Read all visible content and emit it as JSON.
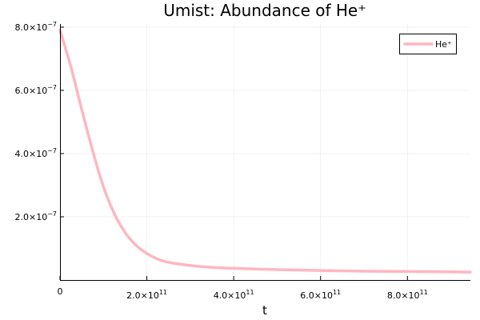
{
  "chart_data": {
    "type": "line",
    "title": "Umist: Abundance of He⁺",
    "xlabel": "t",
    "ylabel": "",
    "xlim": [
      0,
      945000000000.0
    ],
    "ylim": [
      0,
      8.1e-07
    ],
    "grid": true,
    "legend_position": "top-right",
    "x_ticks": [
      {
        "value": 0,
        "label": "0"
      },
      {
        "value": 200000000000.0,
        "mantissa": "2.0×10",
        "exponent": "11"
      },
      {
        "value": 400000000000.0,
        "mantissa": "4.0×10",
        "exponent": "11"
      },
      {
        "value": 600000000000.0,
        "mantissa": "6.0×10",
        "exponent": "11"
      },
      {
        "value": 800000000000.0,
        "mantissa": "8.0×10",
        "exponent": "11"
      }
    ],
    "y_ticks": [
      {
        "value": 2e-07,
        "mantissa": "2.0×10",
        "exponent": "−7"
      },
      {
        "value": 4e-07,
        "mantissa": "4.0×10",
        "exponent": "−7"
      },
      {
        "value": 6e-07,
        "mantissa": "6.0×10",
        "exponent": "−7"
      },
      {
        "value": 8e-07,
        "mantissa": "8.0×10",
        "exponent": "−7"
      }
    ],
    "series": [
      {
        "name": "He⁺",
        "color": "#ffb6c1",
        "x": [
          0,
          25000000000.0,
          50000000000.0,
          75000000000.0,
          100000000000.0,
          125000000000.0,
          150000000000.0,
          175000000000.0,
          200000000000.0,
          225000000000.0,
          250000000000.0,
          300000000000.0,
          350000000000.0,
          400000000000.0,
          500000000000.0,
          600000000000.0,
          700000000000.0,
          800000000000.0,
          945000000000.0
        ],
        "y": [
          7.9e-07,
          6.75e-07,
          5.4e-07,
          4.1e-07,
          2.95e-07,
          2.1e-07,
          1.5e-07,
          1.1e-07,
          8.4e-08,
          6.6e-08,
          5.6e-08,
          4.6e-08,
          4e-08,
          3.7e-08,
          3.3e-08,
          3e-08,
          2.8e-08,
          2.7e-08,
          2.5e-08
        ]
      }
    ]
  }
}
